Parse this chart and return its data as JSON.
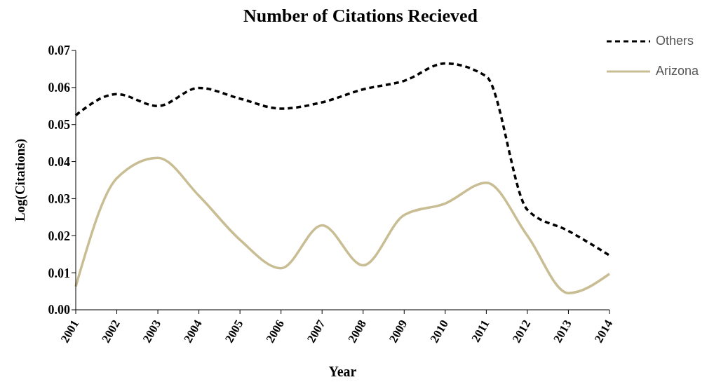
{
  "chart_data": {
    "type": "line",
    "title": "Number of Citations Recieved",
    "xlabel": "Year",
    "ylabel": "Log(Citations)",
    "categories": [
      "2001",
      "2002",
      "2003",
      "2004",
      "2005",
      "2006",
      "2007",
      "2008",
      "2009",
      "2010",
      "2011",
      "2012",
      "2013",
      "2014"
    ],
    "series": [
      {
        "name": "Others",
        "color": "#000000",
        "line_style": "dashed",
        "values": [
          0.0525,
          0.0582,
          0.055,
          0.0599,
          0.057,
          0.0543,
          0.056,
          0.0595,
          0.0618,
          0.0665,
          0.063,
          0.027,
          0.0213,
          0.0147
        ]
      },
      {
        "name": "Arizona",
        "color": "#c8bd93",
        "line_style": "solid",
        "values": [
          0.0063,
          0.0355,
          0.041,
          0.0308,
          0.0189,
          0.0112,
          0.0228,
          0.012,
          0.0256,
          0.0287,
          0.0343,
          0.02,
          0.0045,
          0.0097
        ]
      }
    ],
    "ylim": [
      0,
      0.07
    ],
    "yticks": [
      {
        "value": 0,
        "label": "0.00"
      },
      {
        "value": 0.01,
        "label": "0.01"
      },
      {
        "value": 0.02,
        "label": "0.02"
      },
      {
        "value": 0.03,
        "label": "0.03"
      },
      {
        "value": 0.04,
        "label": "0.04"
      },
      {
        "value": 0.05,
        "label": "0.05"
      },
      {
        "value": 0.06,
        "label": "0.06"
      },
      {
        "value": 0.07,
        "label": "0.07"
      }
    ],
    "grid": false,
    "legend": "top right",
    "marker": "none"
  }
}
